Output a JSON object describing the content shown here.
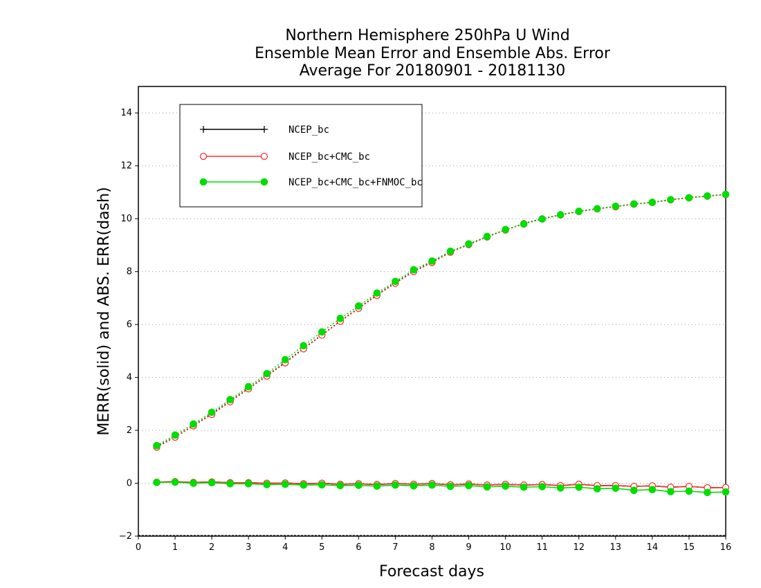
{
  "chart_data": {
    "type": "line",
    "title_lines": [
      "Northern Hemisphere 250hPa U Wind",
      "Ensemble Mean Error and Ensemble Abs. Error",
      "Average For 20180901 - 20181130"
    ],
    "xlabel": "Forecast days",
    "ylabel": "MERR(solid) and ABS. ERR(dash)",
    "xlim": [
      0,
      16
    ],
    "ylim": [
      -2,
      15
    ],
    "xticks": [
      0,
      1,
      2,
      3,
      4,
      5,
      6,
      7,
      8,
      9,
      10,
      11,
      12,
      13,
      14,
      15,
      16
    ],
    "yticks": [
      -2,
      0,
      2,
      4,
      6,
      8,
      10,
      12,
      14
    ],
    "grid": "horizontal dotted",
    "legend_position": "top-left",
    "x": [
      0.5,
      1,
      1.5,
      2,
      2.5,
      3,
      3.5,
      4,
      4.5,
      5,
      5.5,
      6,
      6.5,
      7,
      7.5,
      8,
      8.5,
      9,
      9.5,
      10,
      10.5,
      11,
      11.5,
      12,
      12.5,
      13,
      13.5,
      14,
      14.5,
      15,
      15.5,
      16
    ],
    "series": [
      {
        "name": "NCEP_bc",
        "color": "#000000",
        "marker": "plus",
        "merr": [
          0.04,
          0.06,
          0.03,
          0.05,
          0.02,
          0.02,
          0.0,
          0.01,
          -0.02,
          0.0,
          -0.04,
          -0.02,
          -0.05,
          -0.01,
          -0.04,
          -0.01,
          -0.06,
          -0.03,
          -0.07,
          -0.04,
          -0.07,
          -0.05,
          -0.09,
          -0.04,
          -0.09,
          -0.09,
          -0.12,
          -0.1,
          -0.15,
          -0.12,
          -0.17,
          -0.16
        ],
        "abs_err": [
          1.38,
          1.75,
          2.18,
          2.62,
          3.1,
          3.58,
          4.07,
          4.57,
          5.1,
          5.61,
          6.13,
          6.62,
          7.12,
          7.58,
          8.01,
          8.36,
          8.74,
          9.03,
          9.32,
          9.58,
          9.82,
          10.0,
          10.15,
          10.28,
          10.38,
          10.46,
          10.55,
          10.62,
          10.72,
          10.8,
          10.86,
          10.92
        ]
      },
      {
        "name": "NCEP_bc+CMC_bc",
        "color": "#ff3030",
        "marker": "open-circle",
        "merr": [
          0.04,
          0.06,
          0.03,
          0.05,
          0.02,
          0.02,
          0.0,
          0.01,
          -0.02,
          0.0,
          -0.04,
          -0.02,
          -0.05,
          -0.01,
          -0.04,
          -0.01,
          -0.06,
          -0.03,
          -0.07,
          -0.04,
          -0.07,
          -0.05,
          -0.09,
          -0.04,
          -0.09,
          -0.09,
          -0.12,
          -0.1,
          -0.15,
          -0.12,
          -0.17,
          -0.16
        ],
        "abs_err": [
          1.36,
          1.74,
          2.17,
          2.6,
          3.08,
          3.57,
          4.05,
          4.55,
          5.08,
          5.6,
          6.12,
          6.61,
          7.1,
          7.56,
          8.0,
          8.34,
          8.73,
          9.02,
          9.31,
          9.57,
          9.81,
          9.99,
          10.14,
          10.27,
          10.37,
          10.45,
          10.55,
          10.61,
          10.71,
          10.79,
          10.85,
          10.91
        ]
      },
      {
        "name": "NCEP_bc+CMC_bc+FNMOC_bc",
        "color": "#00dd00",
        "marker": "filled-circle",
        "merr": [
          0.03,
          0.04,
          0.0,
          0.02,
          -0.02,
          -0.02,
          -0.05,
          -0.04,
          -0.07,
          -0.06,
          -0.09,
          -0.08,
          -0.11,
          -0.07,
          -0.1,
          -0.07,
          -0.12,
          -0.09,
          -0.14,
          -0.11,
          -0.15,
          -0.13,
          -0.18,
          -0.15,
          -0.21,
          -0.19,
          -0.27,
          -0.24,
          -0.32,
          -0.3,
          -0.35,
          -0.33
        ],
        "abs_err": [
          1.42,
          1.82,
          2.24,
          2.68,
          3.16,
          3.65,
          4.14,
          4.67,
          5.2,
          5.72,
          6.23,
          6.7,
          7.19,
          7.63,
          8.07,
          8.4,
          8.77,
          9.05,
          9.33,
          9.59,
          9.8,
          9.99,
          10.15,
          10.28,
          10.38,
          10.47,
          10.56,
          10.62,
          10.72,
          10.79,
          10.86,
          10.92
        ]
      }
    ]
  }
}
